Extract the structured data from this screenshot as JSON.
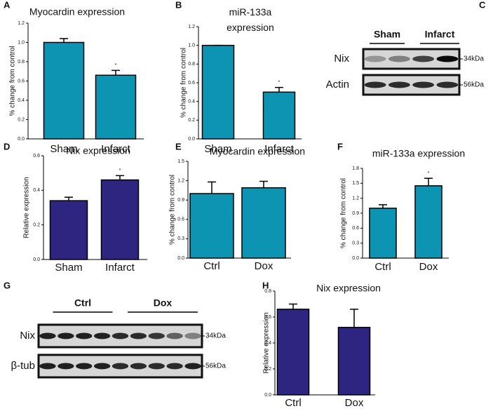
{
  "chart_data": [
    {
      "panel": "A",
      "type": "bar",
      "title": "Myocardin expression",
      "ylabel": "% change from control",
      "categories": [
        "Sham",
        "Infarct"
      ],
      "values": [
        1.0,
        0.66
      ],
      "errors": [
        0.04,
        0.05
      ],
      "significance": [
        null,
        "*"
      ],
      "color": "#0e94b3",
      "ylim": [
        0,
        1.2
      ],
      "yticks": [
        {
          "value": 0,
          "label": "0.0"
        },
        0.2,
        0.4,
        0.6,
        0.8,
        {
          "value": 1,
          "label": "1.0"
        },
        1.2
      ]
    },
    {
      "panel": "B",
      "type": "bar",
      "title": "miR-133a expression",
      "ylabel": "% change from control",
      "categories": [
        "Sham",
        "Infarct"
      ],
      "values": [
        1.0,
        0.5
      ],
      "errors": [
        0,
        0.05
      ],
      "significance": [
        null,
        "*"
      ],
      "color": "#0e94b3",
      "ylim": [
        0,
        1.2
      ],
      "yticks": [
        {
          "value": 0,
          "label": "0.0"
        },
        0.2,
        0.4,
        0.6,
        0.8,
        {
          "value": 1,
          "label": "1.0"
        },
        1.2
      ]
    },
    {
      "panel": "D",
      "type": "bar",
      "title": "Nix expression",
      "ylabel": "Relative expression",
      "categories": [
        "Sham",
        "Infarct"
      ],
      "values": [
        0.34,
        0.46
      ],
      "errors": [
        0.02,
        0.025
      ],
      "significance": [
        null,
        "*"
      ],
      "color": "#2e2580",
      "ylim": [
        0,
        0.6
      ],
      "yticks": [
        {
          "value": 0,
          "label": "0.0"
        },
        0.2,
        0.4,
        0.6
      ]
    },
    {
      "panel": "E",
      "type": "bar",
      "title": "Myocardin expression",
      "ylabel": "% change from control",
      "categories": [
        "Ctrl",
        "Dox"
      ],
      "values": [
        1.0,
        1.09
      ],
      "errors": [
        0.18,
        0.1
      ],
      "significance": [
        null,
        null
      ],
      "color": "#0e94b3",
      "ylim": [
        0,
        1.5
      ],
      "yticks": [
        {
          "value": 0,
          "label": "0.0"
        },
        0.3,
        0.6,
        0.9,
        1.2,
        1.5
      ]
    },
    {
      "panel": "F",
      "type": "bar",
      "title": "miR-133a expression",
      "ylabel": "% change from control",
      "categories": [
        "Ctrl",
        "Dox"
      ],
      "values": [
        1.0,
        1.45
      ],
      "errors": [
        0.07,
        0.15
      ],
      "significance": [
        null,
        "*"
      ],
      "color": "#0e94b3",
      "ylim": [
        0,
        1.8
      ],
      "yticks": [
        {
          "value": 0,
          "label": "0.0"
        },
        0.3,
        0.6,
        0.9,
        1.2,
        1.5,
        1.8
      ]
    },
    {
      "panel": "H",
      "type": "bar",
      "title": "Nix expression",
      "ylabel": "Relative expression",
      "categories": [
        "Ctrl",
        "Dox"
      ],
      "values": [
        0.66,
        0.52
      ],
      "errors": [
        0.04,
        0.14
      ],
      "significance": [
        null,
        null
      ],
      "color": "#2e2580",
      "ylim": [
        0,
        0.8
      ],
      "yticks": [
        {
          "value": 0,
          "label": "0.0"
        },
        0.2,
        0.4,
        0.6,
        0.8
      ]
    }
  ],
  "blots": [
    {
      "panel": "C",
      "groups": [
        "Sham",
        "Infarct"
      ],
      "rows": [
        "Nix",
        "Actin"
      ],
      "sizes": [
        "34kDa",
        "56kDa"
      ]
    },
    {
      "panel": "G",
      "groups": [
        "Ctrl",
        "Dox"
      ],
      "rows": [
        "Nix",
        "β-tub"
      ],
      "sizes": [
        "34kDa",
        "56kDa"
      ]
    }
  ]
}
